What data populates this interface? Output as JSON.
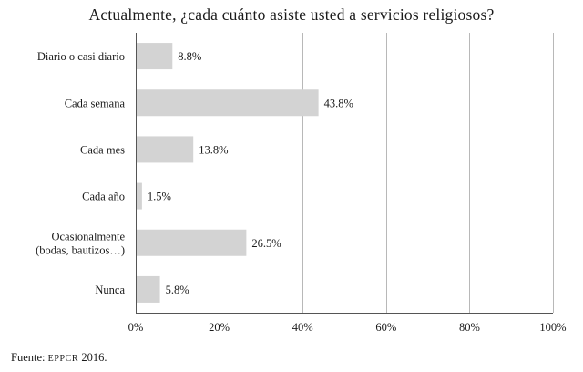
{
  "chart_data": {
    "type": "bar",
    "orientation": "horizontal",
    "title": "Actualmente, ¿cada cuánto asiste usted a servicios religiosos?",
    "categories": [
      [
        "Diario o casi diario"
      ],
      [
        "Cada semana"
      ],
      [
        "Cada mes"
      ],
      [
        "Cada año"
      ],
      [
        "Ocasionalmente",
        "(bodas, bautizos…)"
      ],
      [
        "Nunca"
      ]
    ],
    "values": [
      8.8,
      43.8,
      13.8,
      1.5,
      26.5,
      5.8
    ],
    "value_labels": [
      "8.8%",
      "43.8%",
      "13.8%",
      "1.5%",
      "26.5%",
      "5.8%"
    ],
    "xlim": [
      0,
      100
    ],
    "xticks": [
      0,
      20,
      40,
      60,
      80,
      100
    ],
    "xtick_labels": [
      "0%",
      "20%",
      "40%",
      "60%",
      "80%",
      "100%"
    ],
    "grid": "vertical",
    "bar_color": "#d3d3d3",
    "grid_color": "#b8b8b8",
    "axis_color": "#555555",
    "legend": "none"
  },
  "source": {
    "prefix": "Fuente: ",
    "org": "EPPCR",
    "suffix": " 2016."
  }
}
